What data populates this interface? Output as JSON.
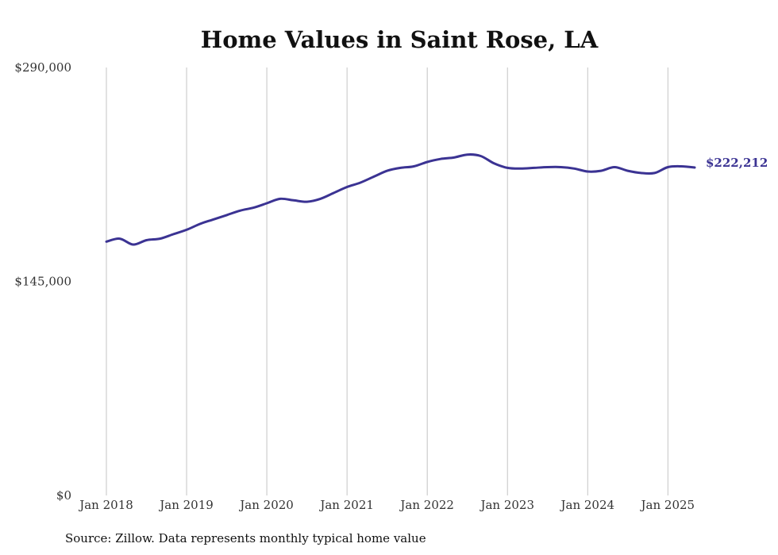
{
  "chart_data": {
    "type": "line",
    "title": "Home Values in Saint Rose, LA",
    "y_ticks": [
      "$0",
      "$145,000",
      "$290,000"
    ],
    "ylim": [
      0,
      290000
    ],
    "x_range": [
      "2018-01",
      "2025-05"
    ],
    "x_ticks": [
      {
        "date": "2018-01",
        "label": "Jan 2018"
      },
      {
        "date": "2019-01",
        "label": "Jan 2019"
      },
      {
        "date": "2020-01",
        "label": "Jan 2020"
      },
      {
        "date": "2021-01",
        "label": "Jan 2021"
      },
      {
        "date": "2022-01",
        "label": "Jan 2022"
      },
      {
        "date": "2023-01",
        "label": "Jan 2023"
      },
      {
        "date": "2024-01",
        "label": "Jan 2024"
      },
      {
        "date": "2025-01",
        "label": "Jan 2025"
      }
    ],
    "grid": {
      "vertical": true,
      "horizontal": false
    },
    "series": [
      {
        "color": "#3b3393",
        "end_label": "$222,212",
        "points": [
          [
            "2018-01",
            172000
          ],
          [
            "2018-03",
            174000
          ],
          [
            "2018-05",
            170000
          ],
          [
            "2018-07",
            173000
          ],
          [
            "2018-09",
            174000
          ],
          [
            "2018-11",
            177000
          ],
          [
            "2019-01",
            180000
          ],
          [
            "2019-03",
            184000
          ],
          [
            "2019-05",
            187000
          ],
          [
            "2019-07",
            190000
          ],
          [
            "2019-09",
            193000
          ],
          [
            "2019-11",
            195000
          ],
          [
            "2020-01",
            198000
          ],
          [
            "2020-03",
            201000
          ],
          [
            "2020-05",
            200000
          ],
          [
            "2020-07",
            199000
          ],
          [
            "2020-09",
            201000
          ],
          [
            "2020-11",
            205000
          ],
          [
            "2021-01",
            209000
          ],
          [
            "2021-03",
            212000
          ],
          [
            "2021-05",
            216000
          ],
          [
            "2021-07",
            220000
          ],
          [
            "2021-09",
            222000
          ],
          [
            "2021-11",
            223000
          ],
          [
            "2022-01",
            226000
          ],
          [
            "2022-03",
            228000
          ],
          [
            "2022-05",
            229000
          ],
          [
            "2022-07",
            231000
          ],
          [
            "2022-09",
            230000
          ],
          [
            "2022-11",
            225000
          ],
          [
            "2023-01",
            222000
          ],
          [
            "2023-03",
            221500
          ],
          [
            "2023-05",
            222000
          ],
          [
            "2023-07",
            222500
          ],
          [
            "2023-09",
            222500
          ],
          [
            "2023-11",
            221500
          ],
          [
            "2024-01",
            219500
          ],
          [
            "2024-03",
            220000
          ],
          [
            "2024-05",
            222500
          ],
          [
            "2024-07",
            220000
          ],
          [
            "2024-09",
            218500
          ],
          [
            "2024-11",
            218500
          ],
          [
            "2025-01",
            222500
          ],
          [
            "2025-03",
            223000
          ],
          [
            "2025-05",
            222212
          ]
        ]
      }
    ]
  },
  "source": "Source: Zillow. Data represents monthly typical home value"
}
